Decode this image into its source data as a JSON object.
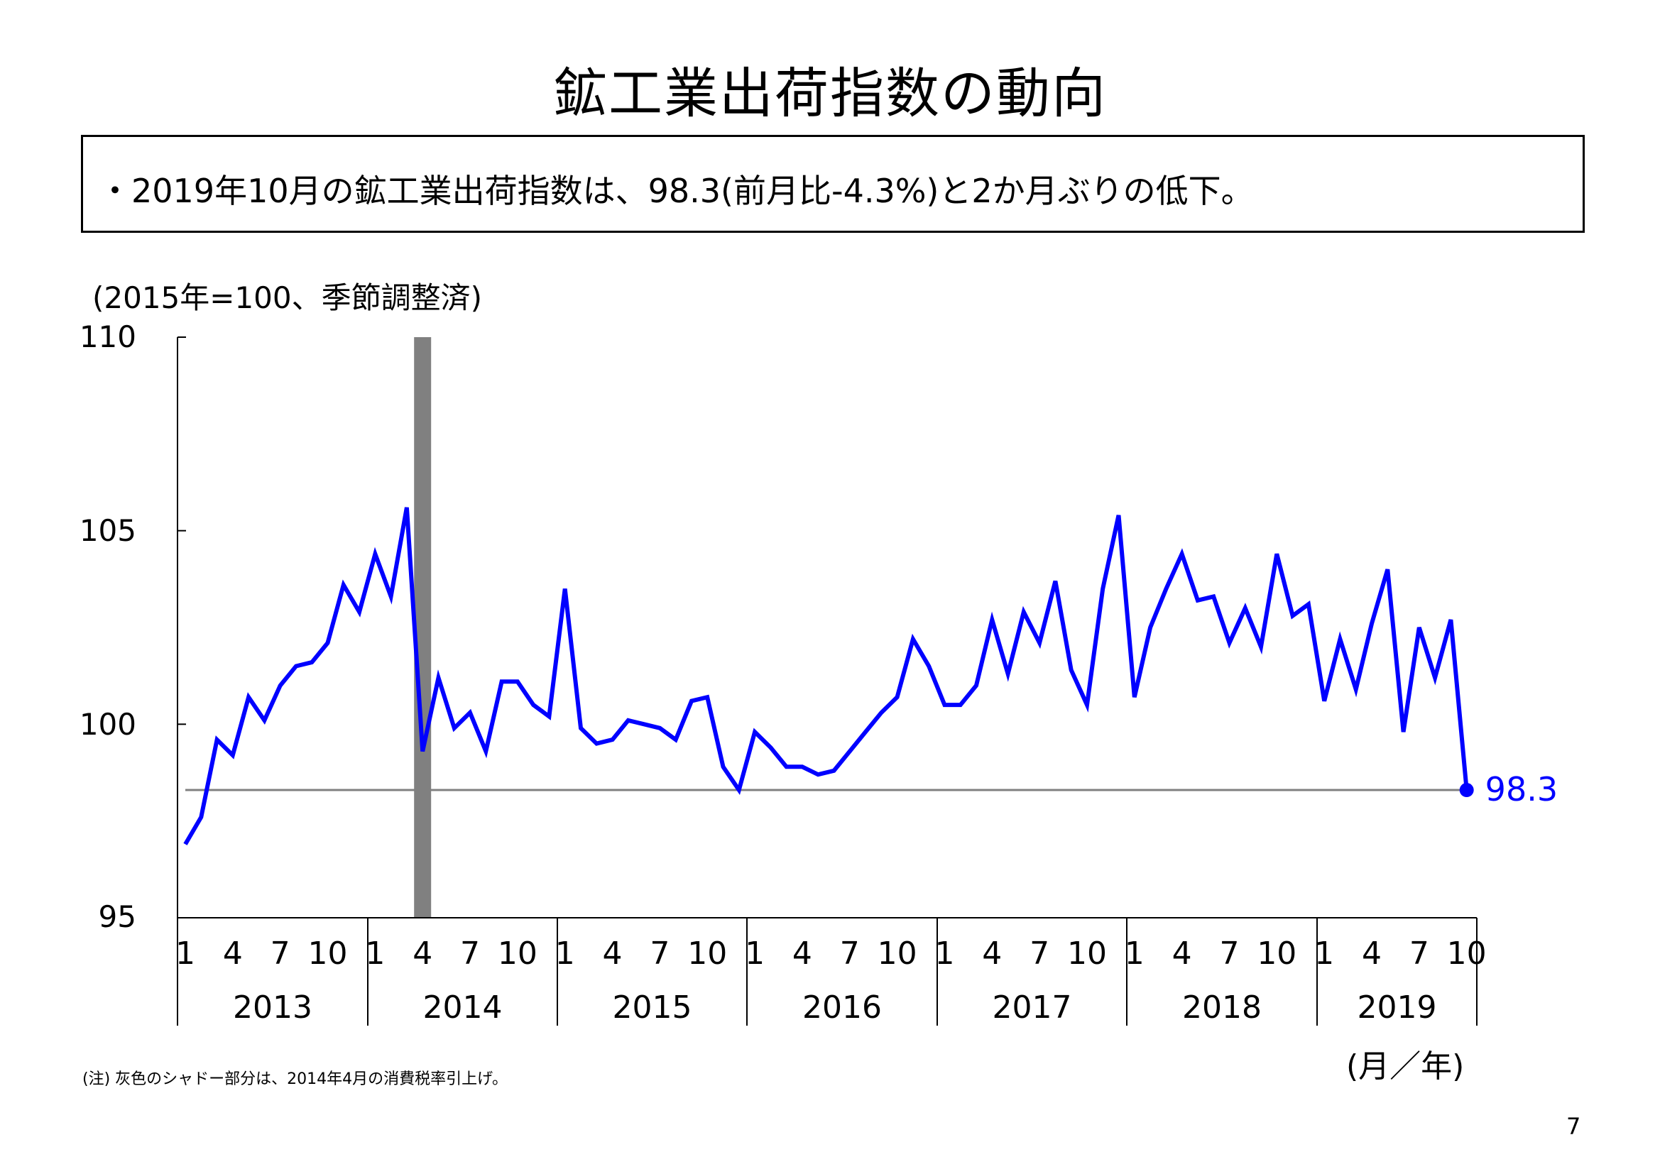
{
  "title": "鉱工業出荷指数の動向",
  "summary": "・2019年10月の鉱工業出荷指数は、98.3(前月比-4.3%)と2か月ぶりの低下。",
  "unit_label": "(2015年=100、季節調整済)",
  "x_unit_label": "(月／年)",
  "note": "(注) 灰色のシャドー部分は、2014年4月の消費税率引上げ。",
  "page_number": "7",
  "last_value_label": "98.3",
  "colors": {
    "line": "#0000ff",
    "shade": "#808080",
    "reference_line": "#808080"
  },
  "chart_data": {
    "type": "line",
    "ylim": [
      95,
      110
    ],
    "yticks": [
      "110",
      "105",
      "100",
      "95"
    ],
    "year_labels": [
      "2013",
      "2014",
      "2015",
      "2016",
      "2017",
      "2018",
      "2019"
    ],
    "month_tick_labels": [
      "1",
      "4",
      "7",
      "10"
    ],
    "last_year_months": 10,
    "shaded_month": "2014-04",
    "reference_value": 98.3,
    "series": [
      {
        "values": [
          96.9,
          97.6,
          99.6,
          99.2,
          100.7,
          100.1,
          101.0,
          101.5,
          101.6,
          102.1,
          103.6,
          102.9,
          104.4,
          103.3,
          105.6,
          99.3,
          101.2,
          99.9,
          100.3,
          99.3,
          101.1,
          101.1,
          100.5,
          100.2,
          103.5,
          99.9,
          99.5,
          99.6,
          100.1,
          100.0,
          99.9,
          99.6,
          100.6,
          100.7,
          98.9,
          98.3,
          99.8,
          99.4,
          98.9,
          98.9,
          98.7,
          98.8,
          99.3,
          99.8,
          100.3,
          100.7,
          102.2,
          101.5,
          100.5,
          100.5,
          101.0,
          102.7,
          101.3,
          102.9,
          102.1,
          103.7,
          101.4,
          100.5,
          103.5,
          105.4,
          100.7,
          102.5,
          103.5,
          104.4,
          103.2,
          103.3,
          102.1,
          103.0,
          102.0,
          104.4,
          102.8,
          103.1,
          100.6,
          102.2,
          100.9,
          102.6,
          104.0,
          99.8,
          102.5,
          101.2,
          102.7,
          98.3
        ]
      }
    ]
  }
}
